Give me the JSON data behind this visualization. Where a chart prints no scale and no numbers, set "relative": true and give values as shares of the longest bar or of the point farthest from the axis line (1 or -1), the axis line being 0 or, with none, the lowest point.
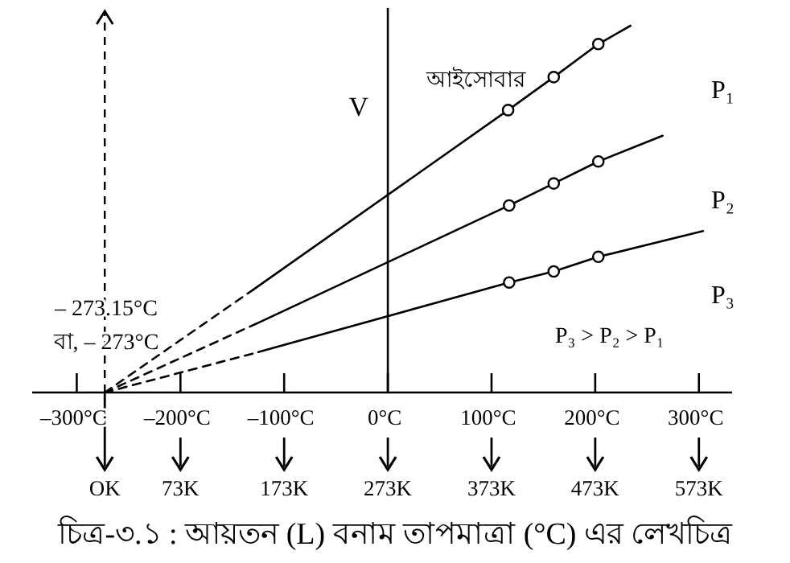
{
  "chart_data": {
    "type": "line",
    "relative": true,
    "title": "চিত্র-৩.১ : আয়তন (L) বনাম তাপমাত্রা (°C) এর লেখচিত্র",
    "ylabel": "V",
    "xlim": [
      -343,
      332
    ],
    "xticks": [
      {
        "value": -300,
        "label": "–300°C"
      },
      {
        "value": -200,
        "label": "–200°C"
      },
      {
        "value": -100,
        "label": "–100°C"
      },
      {
        "value": 0,
        "label": "0°C"
      },
      {
        "value": 100,
        "label": "100°C"
      },
      {
        "value": 200,
        "label": "200°C"
      },
      {
        "value": 300,
        "label": "300°C"
      }
    ],
    "x2lim": [
      -70,
      605
    ],
    "x2ticks": [
      {
        "value": 0,
        "label": "OK"
      },
      {
        "value": 73,
        "label": "73K"
      },
      {
        "value": 173,
        "label": "173K"
      },
      {
        "value": 273,
        "label": "273K"
      },
      {
        "value": 373,
        "label": "373K"
      },
      {
        "value": 473,
        "label": "473K"
      },
      {
        "value": 573,
        "label": "573K"
      }
    ],
    "legend": false,
    "grid": false,
    "marker": "none",
    "ref_lines": [
      {
        "axis": "x",
        "value": -273,
        "line_style": "dashed",
        "color": "#000000"
      }
    ],
    "annotations": [
      "– 273.15°C",
      "বা, – 273°C",
      "আইসোবার",
      "P₃ > P₂ > P₁"
    ],
    "series": [
      {
        "type": "line",
        "line_style": "dashed",
        "color": "#000000",
        "x": [
          -273,
          -130
        ],
        "values": [
          0,
          0.28
        ]
      },
      {
        "type": "line",
        "line_style": "solid",
        "name": "P₁",
        "color": "#000000",
        "x": [
          -130,
          116,
          160,
          203,
          234
        ],
        "values": [
          0.28,
          0.77,
          0.86,
          0.95,
          1
        ]
      },
      {
        "type": "scatter",
        "marker": "circle",
        "color": "#000000",
        "x": [
          116,
          160,
          203
        ],
        "values": [
          0.77,
          0.86,
          0.95
        ]
      },
      {
        "type": "line",
        "line_style": "dashed",
        "color": "#000000",
        "x": [
          -273,
          -125
        ],
        "values": [
          0,
          0.19
        ]
      },
      {
        "type": "line",
        "line_style": "solid",
        "name": "P₂",
        "color": "#000000",
        "x": [
          -125,
          117,
          160,
          203,
          265
        ],
        "values": [
          0.19,
          0.51,
          0.57,
          0.63,
          0.7
        ]
      },
      {
        "type": "scatter",
        "marker": "circle",
        "color": "#000000",
        "x": [
          117,
          160,
          203
        ],
        "values": [
          0.51,
          0.57,
          0.63
        ]
      },
      {
        "type": "line",
        "line_style": "dashed",
        "color": "#000000",
        "x": [
          -273,
          -125
        ],
        "values": [
          0,
          0.11
        ]
      },
      {
        "type": "line",
        "line_style": "solid",
        "name": "P₃",
        "color": "#000000",
        "x": [
          -125,
          117,
          160,
          203,
          304
        ],
        "values": [
          0.11,
          0.3,
          0.33,
          0.37,
          0.44
        ]
      },
      {
        "type": "scatter",
        "marker": "circle",
        "color": "#000000",
        "x": [
          117,
          160,
          203
        ],
        "values": [
          0.3,
          0.33,
          0.37
        ]
      }
    ]
  }
}
